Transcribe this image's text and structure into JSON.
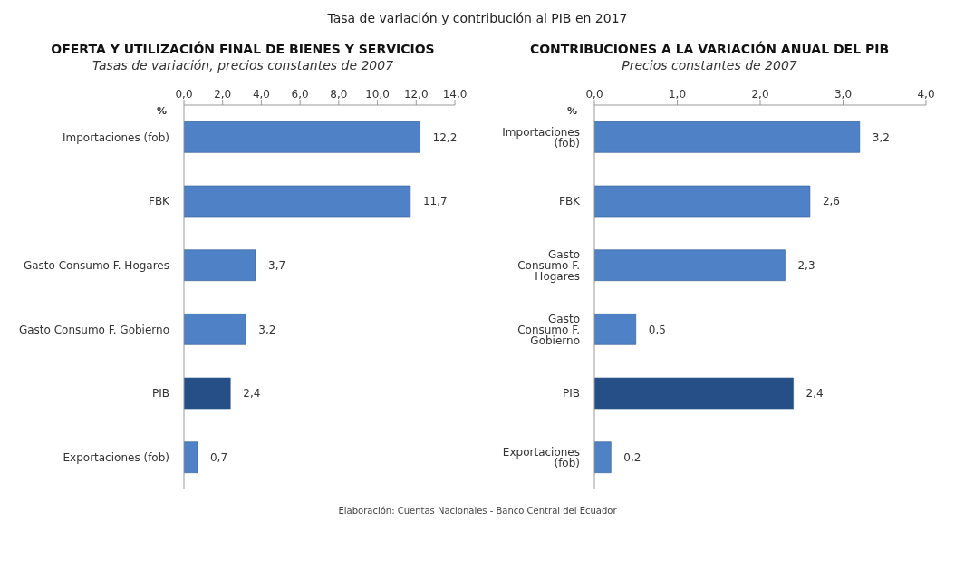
{
  "chart_data": [
    {
      "type": "bar",
      "orientation": "horizontal",
      "title": "OFERTA Y UTILIZACIÓN FINAL DE BIENES Y SERVICIOS",
      "subtitle": "Tasas de variación, precios constantes de 2007",
      "xlabel": "%",
      "annotations": [
        "Tasa de variación y contribución al PIB en 2017"
      ],
      "categories": [
        "Importaciones (fob)",
        "FBK",
        "Gasto Consumo F. Hogares",
        "Gasto Consumo F. Gobierno",
        "PIB",
        "Exportaciones (fob)"
      ],
      "values": [
        12.2,
        11.7,
        3.7,
        3.2,
        2.4,
        0.7
      ],
      "value_labels": [
        "12,2",
        "11,7",
        "3,7",
        "3,2",
        "2,4",
        "0,7"
      ],
      "colors": [
        "#4f81c7",
        "#4f81c7",
        "#4f81c7",
        "#4f81c7",
        "#254f86",
        "#4f81c7"
      ],
      "xlim": [
        0,
        14
      ],
      "xticks": [
        {
          "value": 0,
          "label": "0,0"
        },
        {
          "value": 2,
          "label": "2,0"
        },
        {
          "value": 4,
          "label": "4,0"
        },
        {
          "value": 6,
          "label": "6,0"
        },
        {
          "value": 8,
          "label": "8,0"
        },
        {
          "value": 10,
          "label": "10,0"
        },
        {
          "value": 12,
          "label": "12,0"
        },
        {
          "value": 14,
          "label": "14,0"
        }
      ],
      "grid": false,
      "legend": false
    },
    {
      "type": "bar",
      "orientation": "horizontal",
      "title": "CONTRIBUCIONES A LA VARIACIÓN ANUAL DEL PIB",
      "subtitle": "Precios constantes de 2007",
      "xlabel": "%",
      "annotations": [
        "Elaboración: Cuentas Nacionales - Banco Central del Ecuador"
      ],
      "categories": [
        "Importaciones (fob)",
        "FBK",
        "Gasto Consumo F. Hogares",
        "Gasto Consumo F. Gobierno",
        "PIB",
        "Exportaciones (fob)"
      ],
      "values": [
        3.2,
        2.6,
        2.3,
        0.5,
        2.4,
        0.2
      ],
      "value_labels": [
        "3,2",
        "2,6",
        "2,3",
        "0,5",
        "2,4",
        "0,2"
      ],
      "colors": [
        "#4f81c7",
        "#4f81c7",
        "#4f81c7",
        "#4f81c7",
        "#254f86",
        "#4f81c7"
      ],
      "xlim": [
        0,
        4
      ],
      "xticks": [
        {
          "value": 0,
          "label": "0,0"
        },
        {
          "value": 1,
          "label": "1,0"
        },
        {
          "value": 2,
          "label": "2,0"
        },
        {
          "value": 3,
          "label": "3,0"
        },
        {
          "value": 4,
          "label": "4,0"
        }
      ],
      "grid": false,
      "legend": false
    }
  ]
}
